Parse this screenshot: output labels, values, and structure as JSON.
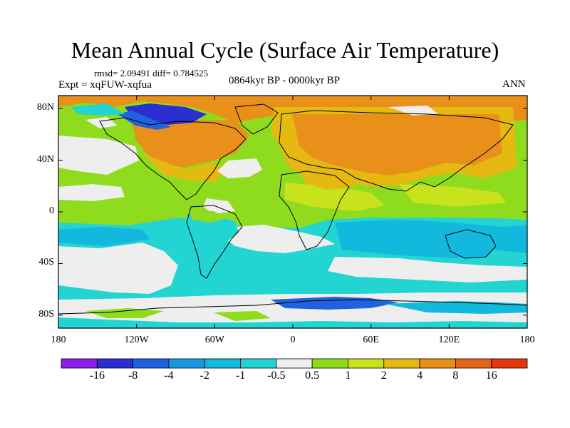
{
  "title": "Mean Annual Cycle (Surface Air Temperature)",
  "stats": "rmsd= 2.09491 diff= 0.784525",
  "experiment": "Expt = xqFUW-xqfua",
  "period": "0864kyr BP - 0000kyr BP",
  "season": "ANN",
  "axes": {
    "lat_ticks": [
      "80N",
      "40N",
      "0",
      "40S",
      "80S"
    ],
    "lon_ticks": [
      "180",
      "120W",
      "60W",
      "0",
      "60E",
      "120E",
      "180"
    ]
  },
  "colorbar": {
    "labels": [
      "-16",
      "-8",
      "-4",
      "-2",
      "-1",
      "-0.5",
      "0.5",
      "1",
      "2",
      "4",
      "8",
      "16"
    ],
    "colors": [
      "#8a1fe6",
      "#2b2fd0",
      "#1f62e0",
      "#1a98e0",
      "#12b9dd",
      "#22d4d2",
      "#eeeeee",
      "#8fdc1e",
      "#c8e21c",
      "#e6b812",
      "#e8901a",
      "#e56418",
      "#e4380c"
    ]
  },
  "palette": {
    "white": "#eeeeee",
    "cyan": "#22d4d2",
    "lightblue": "#12b9dd",
    "blue": "#1a98e0",
    "deepblue": "#1f62e0",
    "navy": "#2b2fd0",
    "green": "#8fdc1e",
    "yellow": "#c8e21c",
    "gold": "#e6b812",
    "orange": "#e8901a",
    "darkorange": "#e56418"
  }
}
